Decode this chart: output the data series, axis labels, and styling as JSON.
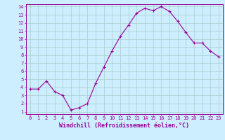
{
  "x": [
    0,
    1,
    2,
    3,
    4,
    5,
    6,
    7,
    8,
    9,
    10,
    11,
    12,
    13,
    14,
    15,
    16,
    17,
    18,
    19,
    20,
    21,
    22,
    23
  ],
  "y": [
    3.8,
    3.8,
    4.8,
    3.5,
    3.0,
    1.2,
    1.5,
    2.0,
    4.5,
    6.5,
    8.5,
    10.3,
    11.7,
    13.2,
    13.8,
    13.5,
    14.0,
    13.4,
    12.2,
    10.8,
    9.5,
    9.5,
    8.5,
    7.8
  ],
  "line_color": "#990099",
  "marker": "+",
  "marker_size": 3,
  "bg_color": "#cceeff",
  "grid_color": "#aacccc",
  "xlabel": "Windchill (Refroidissement éolien,°C)",
  "ylabel": "",
  "xlim": [
    -0.5,
    23.5
  ],
  "ylim": [
    0.7,
    14.3
  ],
  "yticks": [
    1,
    2,
    3,
    4,
    5,
    6,
    7,
    8,
    9,
    10,
    11,
    12,
    13,
    14
  ],
  "xticks": [
    0,
    1,
    2,
    3,
    4,
    5,
    6,
    7,
    8,
    9,
    10,
    11,
    12,
    13,
    14,
    15,
    16,
    17,
    18,
    19,
    20,
    21,
    22,
    23
  ],
  "tick_label_fontsize": 5.0,
  "xlabel_fontsize": 6.0,
  "axis_label_color": "#990099",
  "tick_color": "#990099",
  "spine_color": "#990099"
}
